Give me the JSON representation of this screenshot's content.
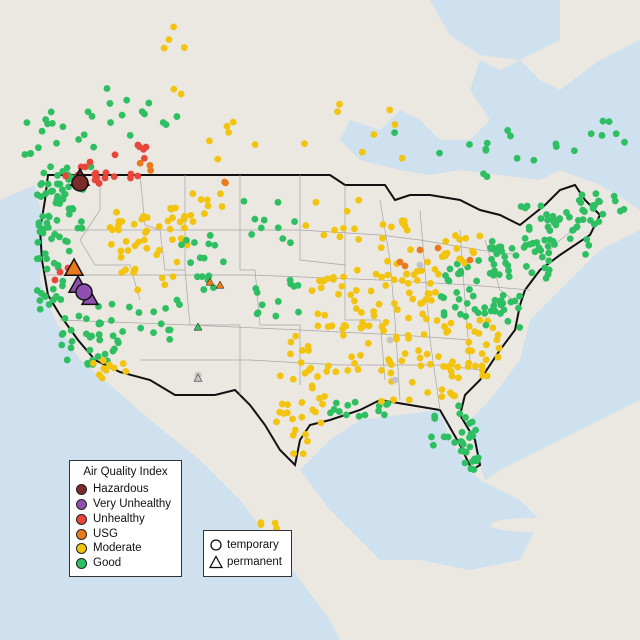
{
  "legend": {
    "title": "Air Quality Index",
    "categories": [
      {
        "label": "Hazardous",
        "color": "#7b2b2b"
      },
      {
        "label": "Very Unhealthy",
        "color": "#8e4fb0"
      },
      {
        "label": "Unhealthy",
        "color": "#e8463a"
      },
      {
        "label": "USG",
        "color": "#ea7a1e"
      },
      {
        "label": "Moderate",
        "color": "#f2c40f"
      },
      {
        "label": "Good",
        "color": "#2ebf62"
      }
    ]
  },
  "monitor_types": {
    "temporary": "temporary",
    "permanent": "permanent"
  },
  "colors": {
    "water": "#cfe0ef",
    "land": "#ebe7e1",
    "border": "#111111",
    "state_line": "#a6a6a6",
    "no_data": "#c4c4c4"
  }
}
